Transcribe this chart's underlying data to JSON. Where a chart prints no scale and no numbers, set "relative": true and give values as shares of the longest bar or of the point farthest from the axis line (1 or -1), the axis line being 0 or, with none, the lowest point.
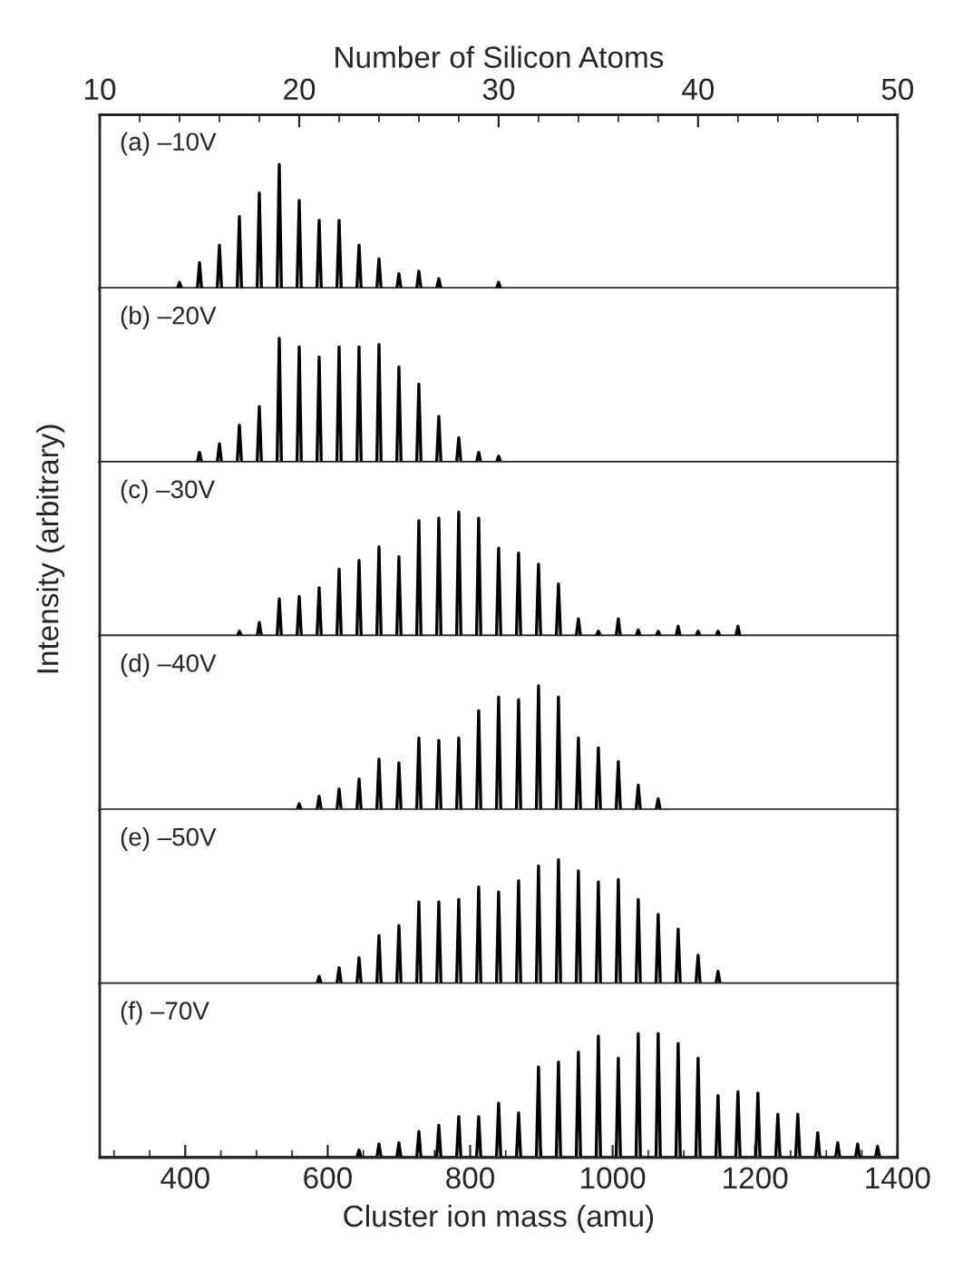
{
  "chart_data": [
    {
      "type": "line",
      "relative": true,
      "x2label": "Number of Silicon Atoms",
      "x2lim": [
        10,
        50
      ],
      "x2ticks": [
        10,
        20,
        30,
        40,
        50
      ],
      "xlim": [
        280,
        1400
      ],
      "tick_labels": false,
      "annotations": [
        "(a) –10V"
      ],
      "series": [
        {
          "color": "#000000",
          "x": [
            280,
            389,
            392,
            395,
            417,
            420,
            423,
            445,
            448,
            451,
            473,
            476,
            479,
            501,
            504,
            507,
            529,
            532,
            535,
            557,
            560,
            563,
            585,
            588,
            591,
            613,
            616,
            619,
            641,
            644,
            647,
            669,
            672,
            675,
            697,
            700,
            703,
            725,
            728,
            731,
            753,
            756,
            759,
            837,
            840,
            843,
            1400
          ],
          "values": [
            0,
            0,
            0.05,
            0,
            0,
            0.21,
            0,
            0,
            0.35,
            0,
            0,
            0.58,
            0,
            0,
            0.77,
            0,
            0,
            1,
            0,
            0,
            0.71,
            0,
            0,
            0.55,
            0,
            0,
            0.55,
            0,
            0,
            0.35,
            0,
            0,
            0.24,
            0,
            0,
            0.12,
            0,
            0,
            0.14,
            0,
            0,
            0.08,
            0,
            0,
            0.05,
            0,
            0
          ]
        }
      ]
    },
    {
      "type": "line",
      "relative": true,
      "xlim": [
        280,
        1400
      ],
      "tick_labels": false,
      "annotations": [
        "(b) –20V"
      ],
      "series": [
        {
          "color": "#000000",
          "x": [
            280,
            417,
            420,
            423,
            445,
            448,
            451,
            473,
            476,
            479,
            501,
            504,
            507,
            529,
            532,
            535,
            557,
            560,
            563,
            585,
            588,
            591,
            613,
            616,
            619,
            641,
            644,
            647,
            669,
            672,
            675,
            697,
            700,
            703,
            725,
            728,
            731,
            753,
            756,
            759,
            781,
            784,
            787,
            809,
            812,
            815,
            837,
            840,
            843,
            1400
          ],
          "values": [
            0,
            0,
            0.08,
            0,
            0,
            0.15,
            0,
            0,
            0.3,
            0,
            0,
            0.45,
            0,
            0,
            1,
            0,
            0,
            0.93,
            0,
            0,
            0.85,
            0,
            0,
            0.93,
            0,
            0,
            0.93,
            0,
            0,
            0.95,
            0,
            0,
            0.77,
            0,
            0,
            0.63,
            0,
            0,
            0.37,
            0,
            0,
            0.2,
            0,
            0,
            0.08,
            0,
            0,
            0.05,
            0,
            0
          ]
        }
      ]
    },
    {
      "type": "line",
      "relative": true,
      "ylabel": "Intensity (arbitrary)",
      "xlim": [
        280,
        1400
      ],
      "tick_labels": false,
      "annotations": [
        "(c) –30V"
      ],
      "series": [
        {
          "color": "#000000",
          "x": [
            280,
            473,
            476,
            479,
            501,
            504,
            507,
            529,
            532,
            535,
            557,
            560,
            563,
            585,
            588,
            591,
            613,
            616,
            619,
            641,
            644,
            647,
            669,
            672,
            675,
            697,
            700,
            703,
            725,
            728,
            731,
            753,
            756,
            759,
            781,
            784,
            787,
            809,
            812,
            815,
            837,
            840,
            843,
            865,
            868,
            871,
            893,
            896,
            899,
            921,
            924,
            927,
            949,
            952,
            955,
            977,
            980,
            983,
            1005,
            1008,
            1011,
            1033,
            1036,
            1039,
            1061,
            1064,
            1067,
            1089,
            1092,
            1095,
            1117,
            1120,
            1123,
            1145,
            1148,
            1151,
            1173,
            1176,
            1179,
            1400
          ],
          "values": [
            0,
            0,
            0.04,
            0,
            0,
            0.11,
            0,
            0,
            0.3,
            0,
            0,
            0.32,
            0,
            0,
            0.39,
            0,
            0,
            0.54,
            0,
            0,
            0.61,
            0,
            0,
            0.72,
            0,
            0,
            0.64,
            0,
            0,
            0.93,
            0,
            0,
            0.95,
            0,
            0,
            1,
            0,
            0,
            0.95,
            0,
            0,
            0.71,
            0,
            0,
            0.67,
            0,
            0,
            0.58,
            0,
            0,
            0.42,
            0,
            0,
            0.14,
            0,
            0,
            0.04,
            0,
            0,
            0.14,
            0,
            0,
            0.05,
            0,
            0,
            0.04,
            0,
            0,
            0.08,
            0,
            0,
            0.04,
            0,
            0,
            0.04,
            0,
            0,
            0.08,
            0,
            0
          ]
        }
      ]
    },
    {
      "type": "line",
      "relative": true,
      "xlim": [
        280,
        1400
      ],
      "tick_labels": false,
      "annotations": [
        "(d) –40V"
      ],
      "series": [
        {
          "color": "#000000",
          "x": [
            280,
            557,
            560,
            563,
            585,
            588,
            591,
            613,
            616,
            619,
            641,
            644,
            647,
            669,
            672,
            675,
            697,
            700,
            703,
            725,
            728,
            731,
            753,
            756,
            759,
            781,
            784,
            787,
            809,
            812,
            815,
            837,
            840,
            843,
            865,
            868,
            871,
            893,
            896,
            899,
            921,
            924,
            927,
            949,
            952,
            955,
            977,
            980,
            983,
            1005,
            1008,
            1011,
            1033,
            1036,
            1039,
            1061,
            1064,
            1067,
            1400
          ],
          "values": [
            0,
            0,
            0.05,
            0,
            0,
            0.11,
            0,
            0,
            0.17,
            0,
            0,
            0.25,
            0,
            0,
            0.41,
            0,
            0,
            0.38,
            0,
            0,
            0.58,
            0,
            0,
            0.56,
            0,
            0,
            0.58,
            0,
            0,
            0.8,
            0,
            0,
            0.91,
            0,
            0,
            0.89,
            0,
            0,
            1,
            0,
            0,
            0.91,
            0,
            0,
            0.58,
            0,
            0,
            0.5,
            0,
            0,
            0.39,
            0,
            0,
            0.2,
            0,
            0,
            0.09,
            0,
            0
          ]
        }
      ]
    },
    {
      "type": "line",
      "relative": true,
      "xlim": [
        280,
        1400
      ],
      "tick_labels": false,
      "annotations": [
        "(e) –50V"
      ],
      "series": [
        {
          "color": "#000000",
          "x": [
            280,
            585,
            588,
            591,
            613,
            616,
            619,
            641,
            644,
            647,
            669,
            672,
            675,
            697,
            700,
            703,
            725,
            728,
            731,
            753,
            756,
            759,
            781,
            784,
            787,
            809,
            812,
            815,
            837,
            840,
            843,
            865,
            868,
            871,
            893,
            896,
            899,
            921,
            924,
            927,
            949,
            952,
            955,
            977,
            980,
            983,
            1005,
            1008,
            1011,
            1033,
            1036,
            1039,
            1061,
            1064,
            1067,
            1089,
            1092,
            1095,
            1117,
            1120,
            1123,
            1145,
            1148,
            1151,
            1400
          ],
          "values": [
            0,
            0,
            0.06,
            0,
            0,
            0.13,
            0,
            0,
            0.21,
            0,
            0,
            0.39,
            0,
            0,
            0.47,
            0,
            0,
            0.66,
            0,
            0,
            0.66,
            0,
            0,
            0.68,
            0,
            0,
            0.78,
            0,
            0,
            0.74,
            0,
            0,
            0.83,
            0,
            0,
            0.95,
            0,
            0,
            1,
            0,
            0,
            0.91,
            0,
            0,
            0.82,
            0,
            0,
            0.84,
            0,
            0,
            0.68,
            0,
            0,
            0.56,
            0,
            0,
            0.44,
            0,
            0,
            0.23,
            0,
            0,
            0.1,
            0,
            0
          ]
        }
      ]
    },
    {
      "type": "line",
      "relative": true,
      "xlabel": "Cluster ion mass (amu)",
      "xlim": [
        280,
        1400
      ],
      "xticks": [
        400,
        600,
        800,
        1000,
        1200,
        1400
      ],
      "tick_labels": "x",
      "annotations": [
        "(f) –70V"
      ],
      "series": [
        {
          "color": "#000000",
          "x": [
            280,
            641,
            644,
            647,
            669,
            672,
            675,
            697,
            700,
            703,
            725,
            728,
            731,
            753,
            756,
            759,
            781,
            784,
            787,
            809,
            812,
            815,
            837,
            840,
            843,
            865,
            868,
            871,
            893,
            896,
            899,
            921,
            924,
            927,
            949,
            952,
            955,
            977,
            980,
            983,
            1005,
            1008,
            1011,
            1033,
            1036,
            1039,
            1061,
            1064,
            1067,
            1089,
            1092,
            1095,
            1117,
            1120,
            1123,
            1145,
            1148,
            1151,
            1173,
            1176,
            1179,
            1201,
            1204,
            1207,
            1229,
            1232,
            1235,
            1257,
            1260,
            1263,
            1285,
            1288,
            1291,
            1313,
            1316,
            1319,
            1341,
            1344,
            1347,
            1369,
            1372,
            1375,
            1400
          ],
          "values": [
            0,
            0,
            0.06,
            0,
            0,
            0.11,
            0,
            0,
            0.12,
            0,
            0,
            0.21,
            0,
            0,
            0.26,
            0,
            0,
            0.33,
            0,
            0,
            0.33,
            0,
            0,
            0.44,
            0,
            0,
            0.36,
            0,
            0,
            0.73,
            0,
            0,
            0.77,
            0,
            0,
            0.85,
            0,
            0,
            0.98,
            0,
            0,
            0.8,
            0,
            0,
            1,
            0,
            0,
            1,
            0,
            0,
            0.92,
            0,
            0,
            0.8,
            0,
            0,
            0.5,
            0,
            0,
            0.53,
            0,
            0,
            0.52,
            0,
            0,
            0.35,
            0,
            0,
            0.35,
            0,
            0,
            0.2,
            0,
            0,
            0.12,
            0,
            0,
            0.11,
            0,
            0,
            0.09,
            0,
            0
          ]
        }
      ]
    }
  ]
}
